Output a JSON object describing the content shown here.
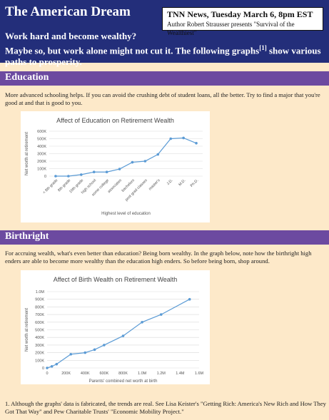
{
  "header": {
    "title": "The American Dream",
    "news_title": "TNN News, Tuesday March 6, 8pm EST",
    "news_author": "Author Robert Strausser presents \"Survival of the Wealthiest\"",
    "tagline_1": "Work hard and become wealthy?",
    "tagline_2": "Maybe so, but work alone might not cut it. The following graphs",
    "tagline_sup": "[1]",
    "tagline_3": " show various paths to prosperity."
  },
  "education": {
    "heading": "Education",
    "text": "More advanced schooling helps. If you can avoid the crushing debt of student loans, all the better. Try to find a major that you're good at and that is good to you."
  },
  "birthright": {
    "heading": "Birthright",
    "text": "For accruing wealth, what's even better than education? Being born wealthy. In the graph below, note how the birthright high enders are able to become more wealthy than the education high enders. So before being born, shop around."
  },
  "footnote": "1. Although the graphs' data is fabricated, the trends are real. See Lisa Keister's \"Getting Rich: America's New Rich and How They Got That Way\" and Pew Charitable Trusts' \"Economic Mobility Project.\"",
  "chart_data": [
    {
      "type": "line",
      "title": "Affect of Education on Retirement Wealth",
      "xlabel": "Highest level of education",
      "ylabel": "Net worth at retirement",
      "categories": [
        "< 8th grade",
        "8th grade",
        "10th grade",
        "high school",
        "some college",
        "associates",
        "bachelors",
        "post grad classes",
        "master's",
        "J.D.",
        "M.D.",
        "Ph.D."
      ],
      "values": [
        0,
        0,
        20000,
        55000,
        55000,
        95000,
        185000,
        200000,
        290000,
        500000,
        510000,
        440000
      ],
      "ylim": [
        0,
        600000
      ],
      "yticks": [
        "0",
        "100K",
        "200K",
        "300K",
        "400K",
        "500K",
        "600K"
      ],
      "grid": true,
      "color": "#5b9bd5"
    },
    {
      "type": "line",
      "title": "Affect of Birth Wealth on Retirement Wealth",
      "xlabel": "Parents' combined net worth at birth",
      "ylabel": "Net worth at retirement",
      "x": [
        0,
        50000,
        100000,
        250000,
        400000,
        500000,
        600000,
        800000,
        1000000,
        1200000,
        1500000
      ],
      "values": [
        0,
        20000,
        50000,
        180000,
        200000,
        240000,
        300000,
        420000,
        600000,
        700000,
        900000
      ],
      "xlim": [
        0,
        1600000
      ],
      "ylim": [
        0,
        1000000
      ],
      "xticks": [
        "0",
        "200K",
        "400K",
        "600K",
        "800K",
        "1.0M",
        "1.2M",
        "1.4M",
        "1.6M"
      ],
      "yticks": [
        "0",
        "100K",
        "200K",
        "300K",
        "400K",
        "500K",
        "600K",
        "700K",
        "800K",
        "900K",
        "1.0M"
      ],
      "grid": true,
      "color": "#5b9bd5"
    }
  ]
}
